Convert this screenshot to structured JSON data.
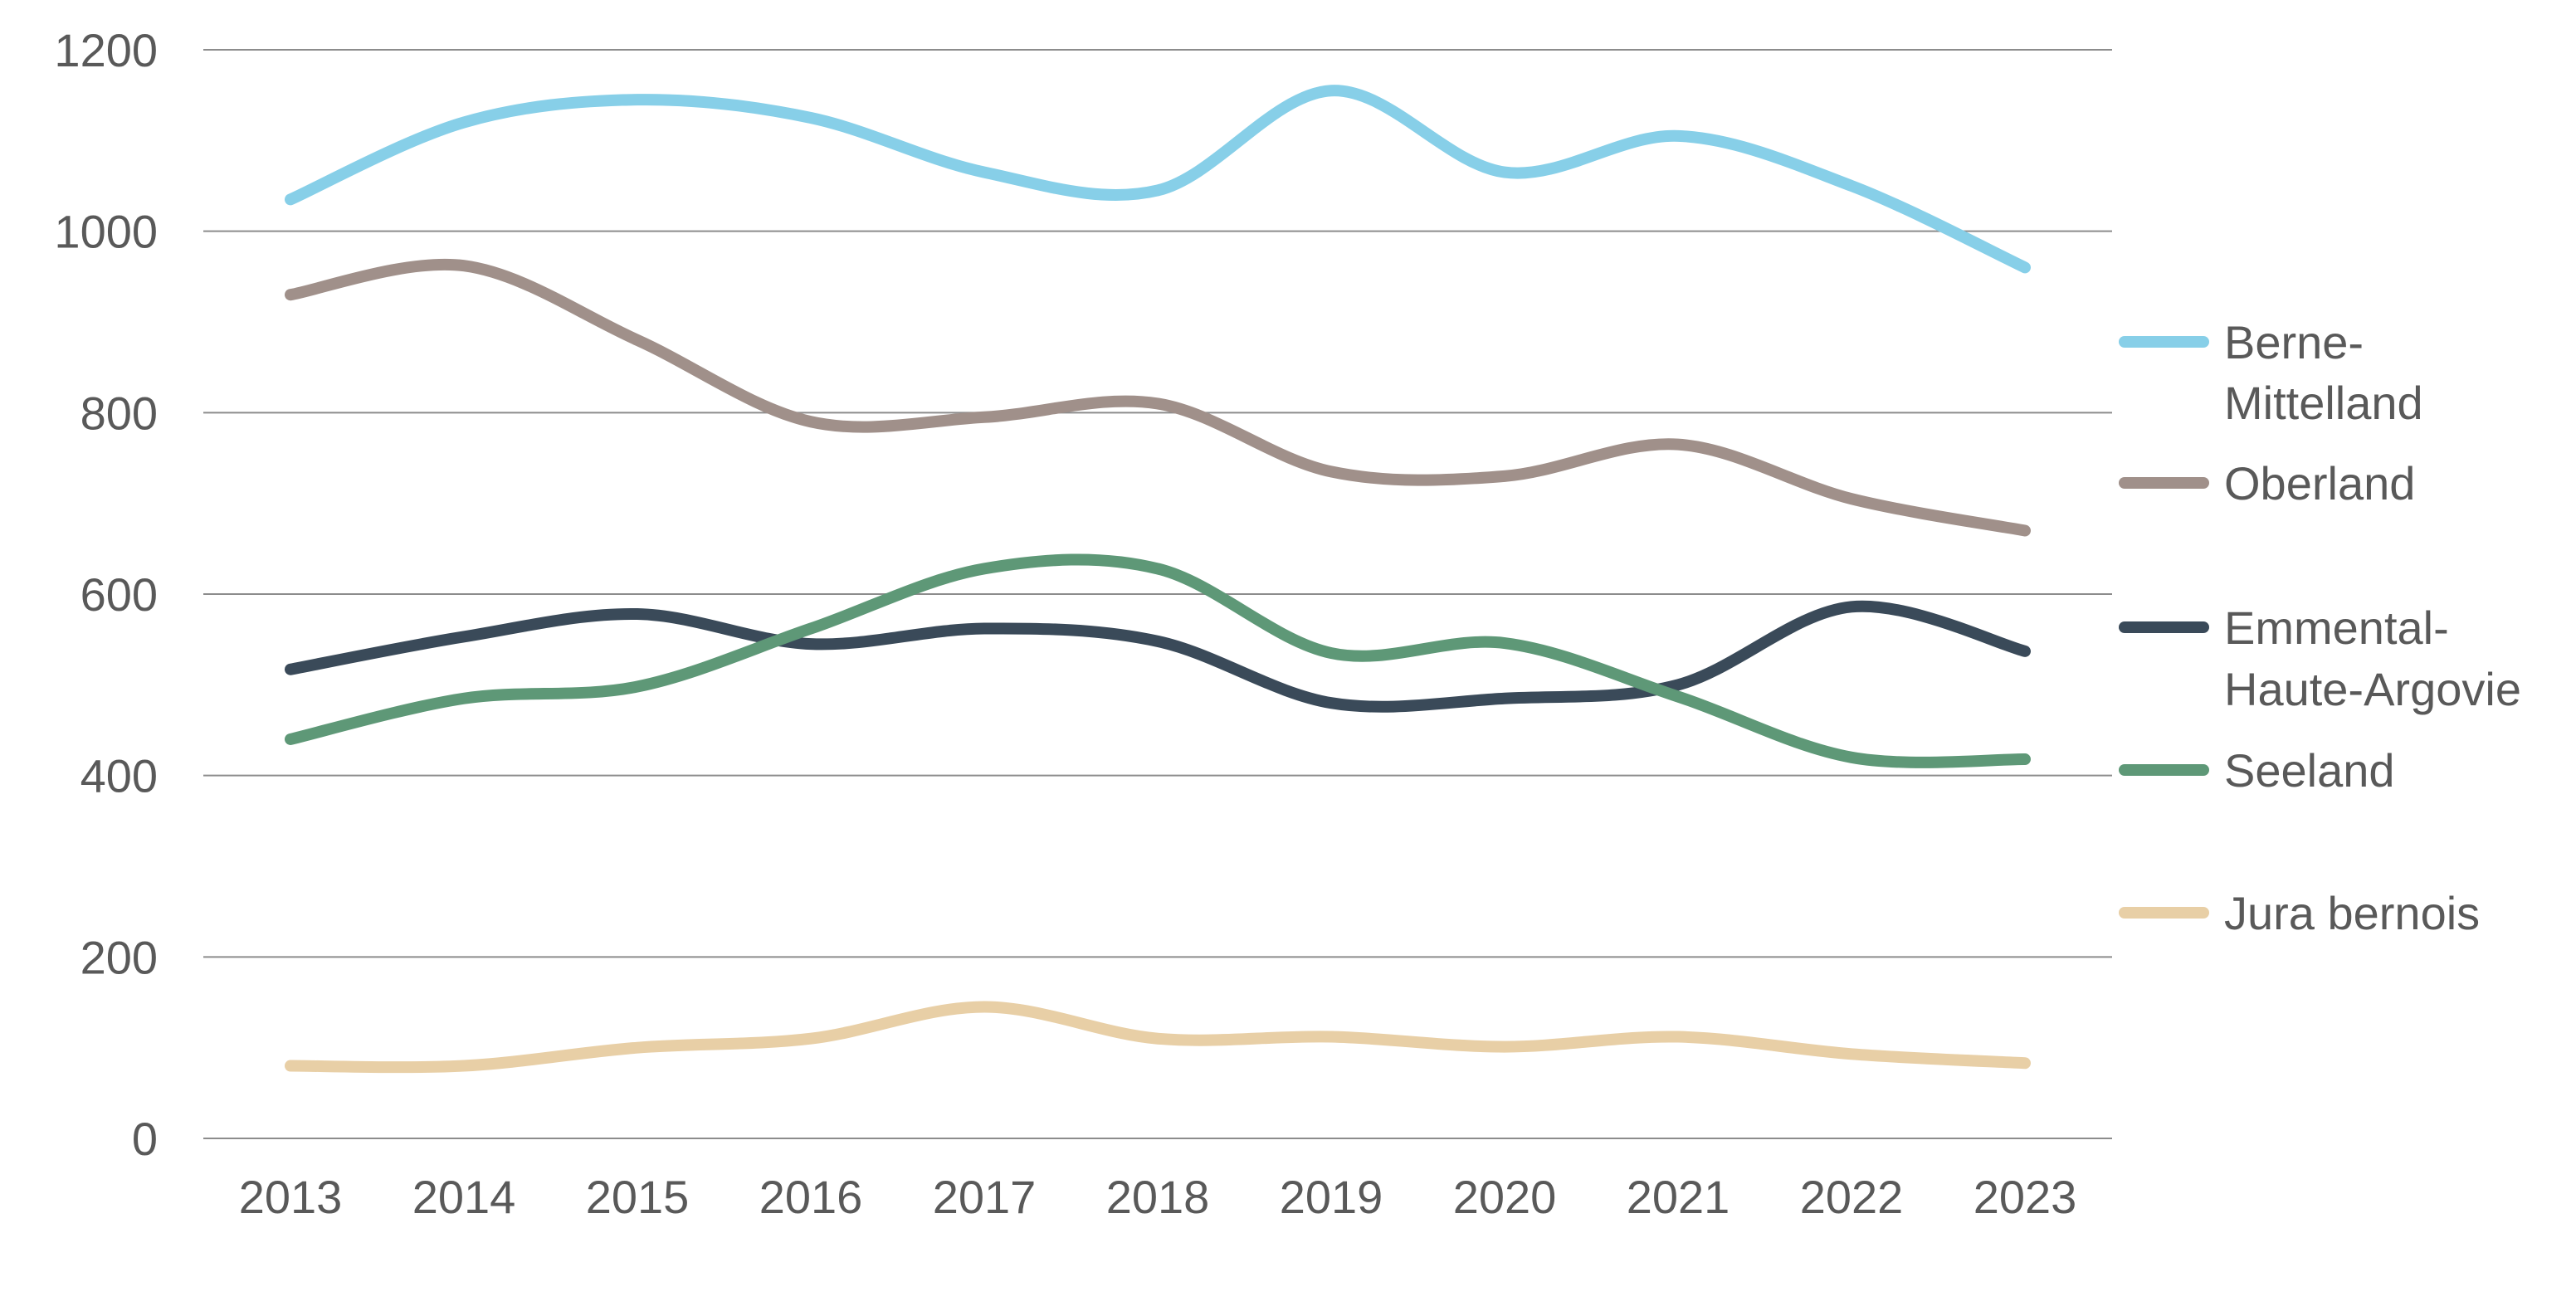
{
  "chart_data": {
    "type": "line",
    "title": "",
    "xlabel": "",
    "ylabel": "",
    "x": [
      "2013",
      "2014",
      "2015",
      "2016",
      "2017",
      "2018",
      "2019",
      "2020",
      "2021",
      "2022",
      "2023"
    ],
    "ylim": [
      0,
      1200
    ],
    "yticks": [
      "0",
      "200",
      "400",
      "600",
      "800",
      "1000",
      "1200"
    ],
    "grid": "horizontal",
    "smooth": true,
    "legend_position": "right",
    "series": [
      {
        "name_lines": [
          "Berne-",
          "Mittelland"
        ],
        "color": "#87cfe8",
        "values": [
          1035,
          1120,
          1145,
          1125,
          1065,
          1045,
          1155,
          1065,
          1105,
          1050,
          960
        ]
      },
      {
        "name_lines": [
          "Oberland"
        ],
        "color": "#a0908a",
        "values": [
          930,
          962,
          880,
          790,
          795,
          810,
          735,
          730,
          765,
          705,
          670
        ]
      },
      {
        "name_lines": [
          "Emmental-",
          "Haute-Argovie"
        ],
        "color": "#3a4a59",
        "values": [
          517,
          553,
          578,
          545,
          562,
          548,
          480,
          485,
          500,
          586,
          537
        ]
      },
      {
        "name_lines": [
          "Seeland"
        ],
        "color": "#5e9877",
        "values": [
          440,
          485,
          498,
          562,
          628,
          628,
          535,
          546,
          487,
          420,
          418
        ]
      },
      {
        "name_lines": [
          "Jura bernois"
        ],
        "color": "#e8cfa6",
        "values": [
          80,
          80,
          100,
          110,
          145,
          110,
          112,
          101,
          112,
          93,
          83
        ]
      }
    ]
  }
}
